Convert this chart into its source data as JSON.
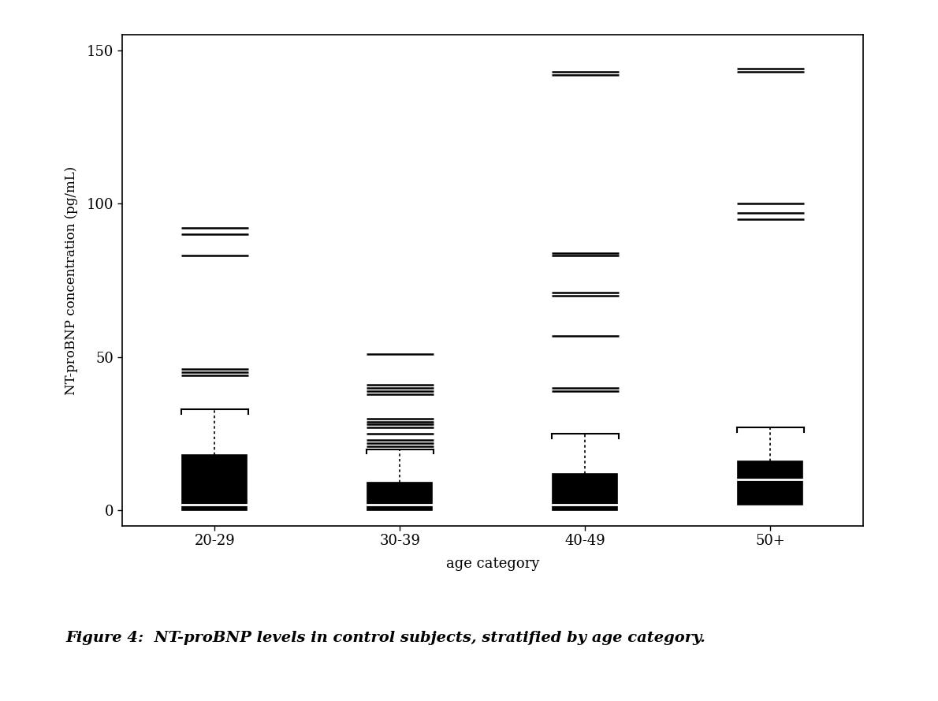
{
  "categories": [
    "20-29",
    "30-39",
    "40-49",
    "50+"
  ],
  "ylabel": "NT-proBNP concentration (pg/mL)",
  "xlabel": "age category",
  "caption": "Figure 4:  NT-proBNP levels in control subjects, stratified by age category.",
  "ylim": [
    -5,
    155
  ],
  "yticks": [
    0,
    50,
    100,
    150
  ],
  "box_data": {
    "20-29": {
      "median": 2,
      "q1": 0,
      "q3": 18,
      "whisker_high": 33,
      "fliers_above": [
        44,
        45,
        46,
        83,
        90,
        92
      ]
    },
    "30-39": {
      "median": 2,
      "q1": 0,
      "q3": 9,
      "whisker_high": 20,
      "fliers_above": [
        21,
        22,
        23,
        25,
        27,
        28,
        29,
        30,
        38,
        39,
        40,
        41,
        51
      ]
    },
    "40-49": {
      "median": 2,
      "q1": 0,
      "q3": 12,
      "whisker_high": 25,
      "fliers_above": [
        39,
        40,
        57,
        70,
        71,
        83,
        84,
        142,
        143
      ]
    },
    "50+": {
      "median": 10,
      "q1": 2,
      "q3": 16,
      "whisker_high": 27,
      "fliers_above": [
        95,
        97,
        100,
        143,
        144
      ]
    }
  },
  "box_color": "#000000",
  "median_color": "#ffffff",
  "background_color": "#ffffff",
  "box_width": 0.35,
  "flier_line_halfwidth": 0.18,
  "whisker_bracket_halfwidth": 0.18
}
